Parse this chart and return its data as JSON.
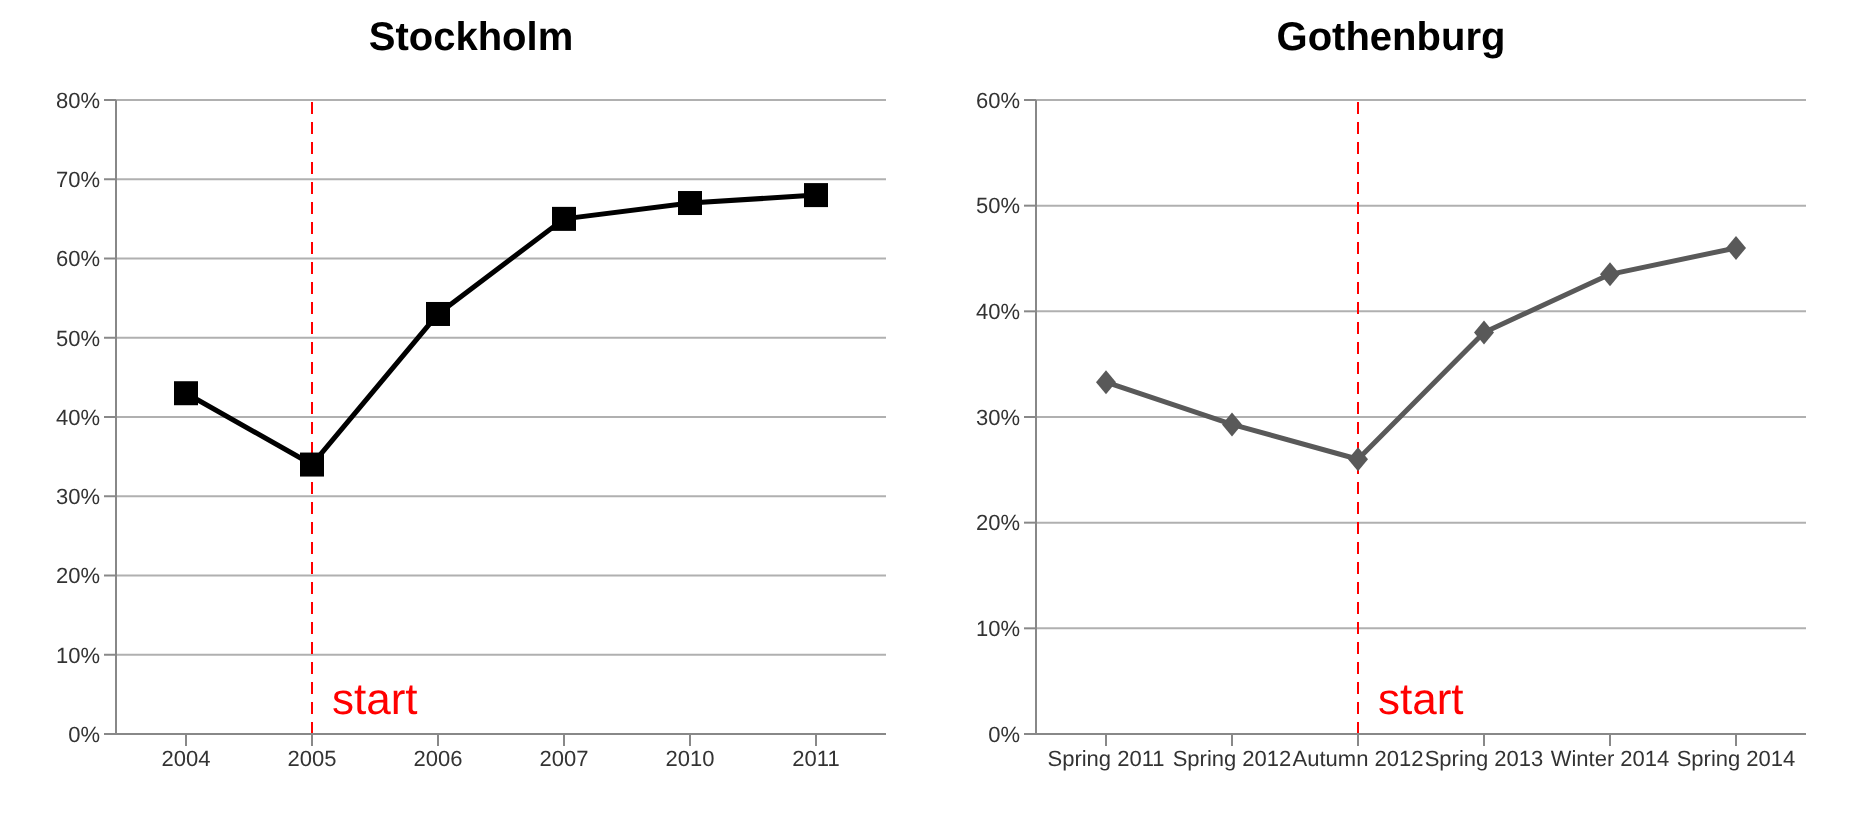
{
  "chart_data": [
    {
      "type": "line",
      "title": "Stockholm",
      "categories": [
        "2004",
        "2005",
        "2006",
        "2007",
        "2010",
        "2011"
      ],
      "series": [
        {
          "color": "#000000",
          "values": [
            43,
            34,
            53,
            65,
            67,
            68
          ]
        }
      ],
      "ylim": [
        0,
        80
      ],
      "yticks": [
        {
          "value": 0,
          "label": "0%"
        },
        {
          "value": 10,
          "label": "10%"
        },
        {
          "value": 20,
          "label": "20%"
        },
        {
          "value": 30,
          "label": "30%"
        },
        {
          "value": 40,
          "label": "40%"
        },
        {
          "value": 50,
          "label": "50%"
        },
        {
          "value": 60,
          "label": "60%"
        },
        {
          "value": 70,
          "label": "70%"
        },
        {
          "value": 80,
          "label": "80%"
        }
      ],
      "grid": "y",
      "marker": "square",
      "line_style": "solid",
      "ref_lines": [
        {
          "axis": "x",
          "value": "2005",
          "label": "start",
          "color": "#ff0000",
          "line_style": "dashed"
        }
      ]
    },
    {
      "type": "line",
      "title": "Gothenburg",
      "categories": [
        "Spring 2011",
        "Spring 2012",
        "Autumn 2012",
        "Spring 2013",
        "Winter 2014",
        "Spring 2014"
      ],
      "series": [
        {
          "color": "#595959",
          "values": [
            33.3,
            29.3,
            26,
            38,
            43.5,
            46
          ]
        }
      ],
      "ylim": [
        0,
        60
      ],
      "yticks": [
        {
          "value": 0,
          "label": "0%"
        },
        {
          "value": 10,
          "label": "10%"
        },
        {
          "value": 20,
          "label": "20%"
        },
        {
          "value": 30,
          "label": "30%"
        },
        {
          "value": 40,
          "label": "40%"
        },
        {
          "value": 50,
          "label": "50%"
        },
        {
          "value": 60,
          "label": "60%"
        }
      ],
      "grid": "y",
      "marker": "diamond",
      "line_style": "solid",
      "ref_lines": [
        {
          "axis": "x",
          "value": "Autumn 2012",
          "label": "start",
          "color": "#ff0000",
          "line_style": "dashed"
        }
      ]
    }
  ]
}
